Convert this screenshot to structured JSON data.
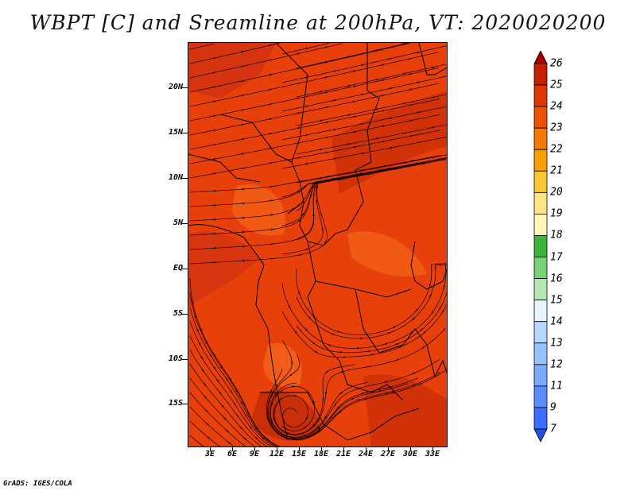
{
  "title": "WBPT [C] and Sreamline at 200hPa, VT: 2020020200",
  "footer": "GrADS: IGES/COLA",
  "lat_labels": [
    "20N",
    "15N",
    "10N",
    "5N",
    "EQ",
    "5S",
    "10S",
    "15S"
  ],
  "lon_labels": [
    "3E",
    "6E",
    "9E",
    "12E",
    "15E",
    "18E",
    "21E",
    "24E",
    "27E",
    "30E",
    "33E"
  ],
  "colorbar": {
    "labels": [
      "26",
      "25",
      "24",
      "23",
      "22",
      "21",
      "20",
      "19",
      "18",
      "17",
      "16",
      "15",
      "14",
      "13",
      "12",
      "11",
      "9",
      "7"
    ],
    "colors": [
      "#a50000",
      "#c81e00",
      "#e13700",
      "#f05000",
      "#f57800",
      "#f8a000",
      "#fac832",
      "#fde682",
      "#fff5b4",
      "#3cb43c",
      "#78d278",
      "#b4e6b4",
      "#e6f5ff",
      "#b4d7ff",
      "#96c3ff",
      "#78aaff",
      "#5a8cff",
      "#3c6eff",
      "#1e50dc"
    ]
  },
  "colors": {
    "field_base": "#e8400a",
    "field_dark": "#d0300a",
    "field_light": "#f05a14",
    "streamline": "#1a0000",
    "coast": "#000000"
  }
}
